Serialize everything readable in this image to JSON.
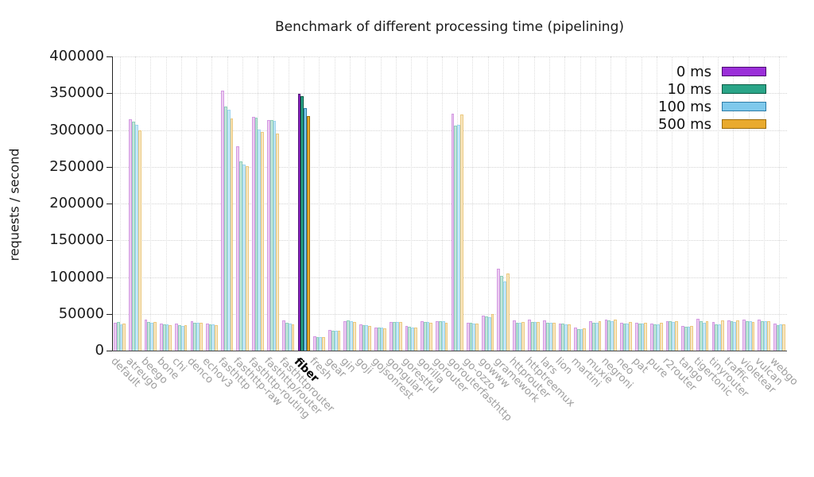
{
  "title": "Benchmark of different processing time (pipelining)",
  "chart_data": {
    "type": "bar",
    "title": "Benchmark of different processing time (pipelining)",
    "xlabel": "",
    "ylabel": "requests / second",
    "ylim": [
      0,
      400000
    ],
    "ytick_step": 50000,
    "ytick_labels": [
      "0",
      "50000",
      "100000",
      "150000",
      "200000",
      "250000",
      "300000",
      "350000",
      "400000"
    ],
    "grid": true,
    "legend_position": "top-right",
    "highlight_category": "fiber",
    "categories": [
      "default",
      "atreugo",
      "beego",
      "bone",
      "chi",
      "denco",
      "echov3",
      "fasthttp",
      "fasthttp-raw",
      "fasthttp-routing",
      "fasthttp/router",
      "fasthttprouter",
      "fiber",
      "fresh",
      "gear",
      "gin",
      "goji",
      "gojsonrest",
      "gongular",
      "gorestful",
      "gorilla",
      "gorouter",
      "gorouterfasthttp",
      "go-ozzo",
      "gowww",
      "gramework",
      "httprouter",
      "httptreemux",
      "lars",
      "lion",
      "martini",
      "muxie",
      "negroni",
      "neo",
      "pat",
      "pure",
      "r2router",
      "tango",
      "tigertonic",
      "tinyrouter",
      "traffic",
      "violetear",
      "vulcan",
      "webgo"
    ],
    "series": [
      {
        "name": "0 ms",
        "color": "#9b2fd9",
        "pale_fill": "#ecccf1",
        "pale_border": "#d49ae2",
        "dark_border": "#4d0b72",
        "values": [
          38000,
          315000,
          42000,
          37000,
          36500,
          40000,
          37000,
          353000,
          278000,
          318000,
          314000,
          41000,
          349000,
          19000,
          28000,
          40000,
          36000,
          31000,
          39000,
          33000,
          39500,
          40000,
          322000,
          37500,
          48000,
          111000,
          41000,
          42000,
          41500,
          37000,
          31000,
          40500,
          42000,
          38000,
          38000,
          37000,
          40000,
          33500,
          43000,
          39000,
          41000,
          42500,
          42500,
          37000
        ]
      },
      {
        "name": "10 ms",
        "color": "#2aa588",
        "pale_fill": "#c5e7db",
        "pale_border": "#8fd0bb",
        "dark_border": "#0c5c44",
        "values": [
          39000,
          311000,
          39000,
          36000,
          35000,
          38000,
          36000,
          332000,
          257000,
          317000,
          313000,
          38000,
          346000,
          18500,
          27500,
          41000,
          35000,
          31500,
          39000,
          32000,
          39000,
          40000,
          306000,
          37500,
          46000,
          102000,
          38000,
          38500,
          38000,
          36500,
          29000,
          38000,
          41500,
          37000,
          36500,
          35500,
          40500,
          32000,
          39500,
          36000,
          40000,
          40000,
          40000,
          35000
        ]
      },
      {
        "name": "100 ms",
        "color": "#7fc9ec",
        "pale_fill": "#cbe9f7",
        "pale_border": "#9ed4ef",
        "dark_border": "#2e7ca8",
        "values": [
          36000,
          307000,
          38000,
          36000,
          34000,
          38000,
          35500,
          328000,
          253000,
          301000,
          312000,
          37000,
          330000,
          18000,
          27500,
          40000,
          35000,
          31000,
          38500,
          31500,
          38500,
          39500,
          307000,
          37000,
          45000,
          94000,
          38000,
          38500,
          37500,
          36000,
          29000,
          37500,
          40000,
          37000,
          36500,
          35500,
          39000,
          32000,
          38000,
          36000,
          39000,
          40500,
          40000,
          36000
        ]
      },
      {
        "name": "500 ms",
        "color": "#e9aa2e",
        "pale_fill": "#f8e7c2",
        "pale_border": "#ecc97f",
        "dark_border": "#9c6d0e",
        "values": [
          37000,
          299000,
          39000,
          35000,
          35000,
          38000,
          35000,
          316000,
          251000,
          297000,
          295000,
          36000,
          319000,
          18000,
          27000,
          39000,
          34000,
          30000,
          38500,
          31000,
          38000,
          37500,
          321000,
          37000,
          50000,
          105000,
          38500,
          39000,
          38000,
          36000,
          30000,
          40000,
          42000,
          38500,
          38000,
          37500,
          40000,
          34000,
          40000,
          41000,
          41000,
          39000,
          40000,
          36000
        ]
      }
    ]
  }
}
